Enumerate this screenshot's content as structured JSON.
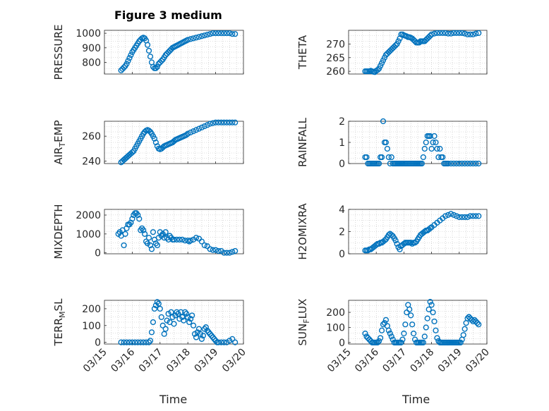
{
  "figure": {
    "title": "Figure 3 medium",
    "xlabel": "Time",
    "marker_color": "#0072BD",
    "axis_color": "#262626",
    "grid_color": "#bfbfbf"
  },
  "chart_data": [
    {
      "type": "scatter",
      "ylabel": "PRESSURE",
      "ylim": [
        720,
        1020
      ],
      "yticks": [
        800,
        900,
        1000
      ],
      "grid": true,
      "x": [
        0.6,
        0.65,
        0.7,
        0.75,
        0.8,
        0.85,
        0.9,
        0.95,
        1.0,
        1.05,
        1.1,
        1.15,
        1.2,
        1.25,
        1.3,
        1.35,
        1.4,
        1.45,
        1.5,
        1.55,
        1.6,
        1.65,
        1.7,
        1.75,
        1.8,
        1.85,
        1.9,
        1.95,
        2.0,
        2.05,
        2.1,
        2.15,
        2.2,
        2.25,
        2.3,
        2.35,
        2.4,
        2.45,
        2.5,
        2.55,
        2.6,
        2.65,
        2.7,
        2.75,
        2.8,
        2.85,
        2.9,
        2.95,
        3.0,
        3.1,
        3.2,
        3.3,
        3.4,
        3.5,
        3.6,
        3.7,
        3.8,
        3.9,
        4.0,
        4.1,
        4.2,
        4.3,
        4.4,
        4.5,
        4.6,
        4.7
      ],
      "y": [
        745,
        755,
        765,
        775,
        790,
        810,
        830,
        850,
        870,
        885,
        900,
        915,
        930,
        945,
        955,
        965,
        970,
        965,
        950,
        920,
        880,
        840,
        800,
        770,
        760,
        760,
        770,
        790,
        800,
        810,
        820,
        835,
        850,
        860,
        870,
        880,
        890,
        900,
        905,
        910,
        915,
        920,
        925,
        930,
        935,
        940,
        945,
        950,
        955,
        960,
        965,
        970,
        975,
        980,
        985,
        990,
        995,
        1000,
        1000,
        1000,
        1000,
        1000,
        1000,
        1000,
        995,
        995
      ]
    },
    {
      "type": "scatter",
      "ylabel": "THETA",
      "ylim": [
        259,
        275
      ],
      "yticks": [
        260,
        265,
        270
      ],
      "grid": true,
      "x": [
        0.6,
        0.65,
        0.7,
        0.75,
        0.8,
        0.85,
        0.9,
        0.95,
        1.0,
        1.05,
        1.1,
        1.15,
        1.2,
        1.25,
        1.3,
        1.35,
        1.4,
        1.45,
        1.5,
        1.55,
        1.6,
        1.65,
        1.7,
        1.75,
        1.8,
        1.85,
        1.9,
        1.95,
        2.0,
        2.05,
        2.1,
        2.15,
        2.2,
        2.25,
        2.3,
        2.35,
        2.4,
        2.45,
        2.5,
        2.55,
        2.6,
        2.65,
        2.7,
        2.75,
        2.8,
        2.85,
        2.9,
        2.95,
        3.0,
        3.1,
        3.2,
        3.3,
        3.4,
        3.5,
        3.6,
        3.7,
        3.8,
        3.9,
        4.0,
        4.1,
        4.2,
        4.3,
        4.4,
        4.5,
        4.6,
        4.7
      ],
      "y": [
        260,
        260,
        260,
        260,
        260.2,
        260,
        259.8,
        259.7,
        260.2,
        260.5,
        261,
        262,
        263,
        264,
        265,
        266,
        266.5,
        267,
        267.5,
        268,
        268.5,
        269,
        269.5,
        270,
        271,
        272,
        273.5,
        273.5,
        273.2,
        273,
        272.8,
        272.5,
        272.5,
        272.3,
        272,
        271.5,
        271,
        270.5,
        270.5,
        270.5,
        271,
        271,
        271,
        271,
        271.5,
        272,
        272.5,
        273,
        273.5,
        273.8,
        274,
        274,
        274,
        274,
        273.8,
        273.8,
        274,
        274,
        274,
        274,
        273.8,
        273.5,
        273.5,
        273.5,
        273.8,
        274
      ]
    },
    {
      "type": "scatter",
      "ylabel": "AIR_TEMP",
      "ylim": [
        238,
        272
      ],
      "yticks": [
        240,
        260
      ],
      "grid": true,
      "x": [
        0.6,
        0.65,
        0.7,
        0.75,
        0.8,
        0.85,
        0.9,
        0.95,
        1.0,
        1.05,
        1.1,
        1.15,
        1.2,
        1.25,
        1.3,
        1.35,
        1.4,
        1.45,
        1.5,
        1.55,
        1.6,
        1.65,
        1.7,
        1.75,
        1.8,
        1.85,
        1.9,
        1.95,
        2.0,
        2.05,
        2.1,
        2.15,
        2.2,
        2.25,
        2.3,
        2.35,
        2.4,
        2.45,
        2.5,
        2.55,
        2.6,
        2.65,
        2.7,
        2.75,
        2.8,
        2.85,
        2.9,
        2.95,
        3.0,
        3.1,
        3.2,
        3.3,
        3.4,
        3.5,
        3.6,
        3.7,
        3.8,
        3.9,
        4.0,
        4.1,
        4.2,
        4.3,
        4.4,
        4.5,
        4.6,
        4.7
      ],
      "y": [
        239,
        240,
        241,
        242,
        243,
        244,
        245,
        246,
        247,
        248,
        250,
        252,
        254,
        256,
        258,
        260,
        262,
        263.5,
        264.5,
        265,
        264.5,
        263.5,
        262,
        260,
        258,
        255,
        252,
        250,
        249.5,
        250,
        251,
        252,
        252.5,
        253,
        253.5,
        254,
        254.5,
        255,
        256,
        257,
        257.5,
        258,
        258.5,
        259,
        259.5,
        260,
        260.5,
        261,
        262,
        263,
        264,
        265,
        266,
        267,
        268,
        269,
        270,
        270.5,
        271,
        271,
        271,
        271,
        271,
        271,
        271,
        271
      ]
    },
    {
      "type": "scatter",
      "ylabel": "RAINFALL",
      "ylim": [
        0,
        2
      ],
      "yticks": [
        0,
        1,
        2
      ],
      "grid": true,
      "x": [
        0.6,
        0.65,
        0.7,
        0.75,
        0.8,
        0.85,
        0.9,
        0.95,
        1.0,
        1.05,
        1.1,
        1.15,
        1.2,
        1.25,
        1.3,
        1.35,
        1.4,
        1.45,
        1.5,
        1.55,
        1.6,
        1.65,
        1.7,
        1.75,
        1.8,
        1.85,
        1.9,
        1.95,
        2.0,
        2.05,
        2.1,
        2.15,
        2.2,
        2.25,
        2.3,
        2.35,
        2.4,
        2.45,
        2.5,
        2.55,
        2.6,
        2.65,
        2.7,
        2.75,
        2.8,
        2.85,
        2.9,
        2.95,
        3.0,
        3.05,
        3.1,
        3.15,
        3.2,
        3.25,
        3.3,
        3.35,
        3.4,
        3.45,
        3.5,
        3.55,
        3.6,
        3.7,
        3.8,
        3.9,
        4.0,
        4.1,
        4.2,
        4.3,
        4.4,
        4.5,
        4.6,
        4.7
      ],
      "y": [
        0.3,
        0.3,
        0,
        0,
        0,
        0,
        0,
        0,
        0,
        0,
        0,
        0.3,
        0.3,
        2,
        1,
        1,
        0.7,
        0.3,
        0,
        0.3,
        0,
        0,
        0,
        0,
        0,
        0,
        0,
        0,
        0,
        0,
        0,
        0,
        0,
        0,
        0,
        0,
        0,
        0,
        0,
        0,
        0,
        0,
        0.3,
        0.7,
        1,
        1.3,
        1.3,
        1.3,
        0.7,
        1,
        1.3,
        1,
        0.7,
        0.3,
        0.7,
        0.3,
        0.3,
        0,
        0,
        0,
        0,
        0,
        0,
        0,
        0,
        0,
        0,
        0,
        0,
        0,
        0,
        0
      ]
    },
    {
      "type": "scatter",
      "ylabel": "MIXDEPTH",
      "ylim": [
        -50,
        2300
      ],
      "yticks": [
        0,
        1000,
        2000
      ],
      "grid": true,
      "x": [
        0.5,
        0.55,
        0.6,
        0.65,
        0.7,
        0.75,
        0.8,
        0.85,
        0.9,
        0.95,
        1.0,
        1.05,
        1.1,
        1.15,
        1.2,
        1.25,
        1.3,
        1.35,
        1.4,
        1.45,
        1.5,
        1.55,
        1.6,
        1.65,
        1.7,
        1.75,
        1.8,
        1.85,
        1.9,
        1.95,
        2.0,
        2.05,
        2.1,
        2.15,
        2.2,
        2.25,
        2.3,
        2.35,
        2.4,
        2.45,
        2.5,
        2.6,
        2.7,
        2.8,
        2.9,
        3.0,
        3.05,
        3.1,
        3.2,
        3.3,
        3.4,
        3.5,
        3.6,
        3.7,
        3.8,
        3.9,
        4.0,
        4.1,
        4.2,
        4.3,
        4.4,
        4.5,
        4.6,
        4.7
      ],
      "y": [
        1000,
        1100,
        900,
        1200,
        400,
        1000,
        1300,
        1500,
        1500,
        1600,
        1800,
        2000,
        2100,
        2100,
        2000,
        1800,
        1200,
        1300,
        1200,
        1000,
        600,
        500,
        800,
        400,
        200,
        1100,
        700,
        500,
        400,
        800,
        1100,
        900,
        1000,
        800,
        1100,
        800,
        700,
        900,
        800,
        700,
        700,
        700,
        700,
        700,
        650,
        650,
        600,
        650,
        700,
        800,
        750,
        600,
        400,
        350,
        200,
        150,
        150,
        100,
        100,
        0,
        0,
        0,
        50,
        100
      ]
    },
    {
      "type": "scatter",
      "ylabel": "H2OMIXRA",
      "ylim": [
        0,
        4
      ],
      "yticks": [
        0,
        2,
        4
      ],
      "grid": true,
      "x": [
        0.6,
        0.65,
        0.7,
        0.75,
        0.8,
        0.85,
        0.9,
        0.95,
        1.0,
        1.05,
        1.1,
        1.15,
        1.2,
        1.25,
        1.3,
        1.35,
        1.4,
        1.45,
        1.5,
        1.55,
        1.6,
        1.65,
        1.7,
        1.75,
        1.8,
        1.85,
        1.9,
        1.95,
        2.0,
        2.05,
        2.1,
        2.15,
        2.2,
        2.25,
        2.3,
        2.35,
        2.4,
        2.45,
        2.5,
        2.55,
        2.6,
        2.65,
        2.7,
        2.75,
        2.8,
        2.85,
        2.9,
        2.95,
        3.0,
        3.1,
        3.2,
        3.3,
        3.4,
        3.5,
        3.6,
        3.7,
        3.8,
        3.9,
        4.0,
        4.1,
        4.2,
        4.3,
        4.4,
        4.5,
        4.6,
        4.7
      ],
      "y": [
        0.3,
        0.3,
        0.3,
        0.4,
        0.4,
        0.5,
        0.6,
        0.7,
        0.8,
        0.9,
        0.9,
        1,
        1,
        1.1,
        1.2,
        1.3,
        1.5,
        1.7,
        1.8,
        1.7,
        1.6,
        1.4,
        1.2,
        0.9,
        0.6,
        0.4,
        0.7,
        0.8,
        0.9,
        1,
        1,
        1,
        1,
        1,
        0.9,
        1,
        1,
        1.1,
        1.3,
        1.5,
        1.7,
        1.8,
        1.9,
        2,
        2.1,
        2.1,
        2.2,
        2.3,
        2.4,
        2.6,
        2.8,
        3,
        3.2,
        3.4,
        3.5,
        3.6,
        3.5,
        3.4,
        3.3,
        3.3,
        3.3,
        3.3,
        3.4,
        3.4,
        3.4,
        3.4
      ]
    },
    {
      "type": "scatter",
      "ylabel": "TERR_MSL",
      "ylim": [
        -10,
        250
      ],
      "yticks": [
        0,
        100,
        200
      ],
      "grid": true,
      "x": [
        0.6,
        0.7,
        0.8,
        0.9,
        1.0,
        1.1,
        1.2,
        1.3,
        1.4,
        1.5,
        1.6,
        1.65,
        1.7,
        1.75,
        1.8,
        1.85,
        1.9,
        1.95,
        2.0,
        2.05,
        2.1,
        2.15,
        2.2,
        2.25,
        2.3,
        2.35,
        2.4,
        2.45,
        2.5,
        2.55,
        2.6,
        2.65,
        2.7,
        2.75,
        2.8,
        2.85,
        2.9,
        2.95,
        3.0,
        3.05,
        3.1,
        3.15,
        3.2,
        3.25,
        3.3,
        3.35,
        3.4,
        3.45,
        3.5,
        3.55,
        3.6,
        3.65,
        3.7,
        3.75,
        3.8,
        3.85,
        3.9,
        3.95,
        4.0,
        4.05,
        4.1,
        4.2,
        4.3,
        4.4,
        4.5,
        4.6,
        4.7
      ],
      "y": [
        0,
        0,
        0,
        0,
        0,
        0,
        0,
        0,
        0,
        0,
        0,
        10,
        60,
        120,
        200,
        220,
        240,
        230,
        200,
        150,
        100,
        50,
        80,
        130,
        170,
        120,
        180,
        150,
        110,
        160,
        180,
        170,
        140,
        180,
        150,
        130,
        180,
        170,
        150,
        120,
        140,
        160,
        100,
        50,
        30,
        60,
        80,
        50,
        20,
        40,
        80,
        90,
        70,
        60,
        50,
        40,
        30,
        20,
        10,
        0,
        0,
        0,
        0,
        0,
        10,
        20,
        0
      ]
    },
    {
      "type": "scatter",
      "ylabel": "SUN_FLUX",
      "ylim": [
        -10,
        280
      ],
      "yticks": [
        0,
        100,
        200
      ],
      "grid": true,
      "x": [
        0.6,
        0.65,
        0.7,
        0.75,
        0.8,
        0.85,
        0.9,
        0.95,
        1.0,
        1.05,
        1.1,
        1.15,
        1.2,
        1.25,
        1.3,
        1.35,
        1.4,
        1.45,
        1.5,
        1.55,
        1.6,
        1.65,
        1.7,
        1.75,
        1.8,
        1.85,
        1.9,
        1.95,
        2.0,
        2.05,
        2.1,
        2.15,
        2.2,
        2.25,
        2.3,
        2.35,
        2.4,
        2.45,
        2.5,
        2.55,
        2.6,
        2.65,
        2.7,
        2.75,
        2.8,
        2.85,
        2.9,
        2.95,
        3.0,
        3.05,
        3.1,
        3.15,
        3.2,
        3.25,
        3.3,
        3.35,
        3.4,
        3.45,
        3.5,
        3.55,
        3.6,
        3.65,
        3.7,
        3.75,
        3.8,
        3.85,
        3.9,
        3.95,
        4.0,
        4.05,
        4.1,
        4.15,
        4.2,
        4.25,
        4.3,
        4.35,
        4.4,
        4.45,
        4.5,
        4.55,
        4.6,
        4.65,
        4.7
      ],
      "y": [
        60,
        40,
        30,
        20,
        10,
        0,
        0,
        0,
        0,
        0,
        10,
        30,
        80,
        120,
        130,
        150,
        110,
        80,
        60,
        40,
        20,
        0,
        0,
        0,
        0,
        0,
        0,
        20,
        60,
        120,
        200,
        250,
        220,
        180,
        120,
        60,
        20,
        0,
        0,
        0,
        0,
        0,
        0,
        40,
        100,
        160,
        220,
        270,
        250,
        200,
        140,
        80,
        30,
        10,
        0,
        0,
        0,
        0,
        0,
        0,
        0,
        0,
        0,
        0,
        0,
        0,
        0,
        0,
        0,
        0,
        20,
        50,
        90,
        130,
        160,
        170,
        160,
        150,
        140,
        150,
        140,
        130,
        120
      ]
    }
  ],
  "xaxis": {
    "xlim": [
      0,
      5
    ],
    "tick_values": [
      0,
      1,
      2,
      3,
      4,
      5
    ],
    "tick_labels": [
      "03/15",
      "03/16",
      "03/17",
      "03/18",
      "03/19",
      "03/20"
    ]
  }
}
